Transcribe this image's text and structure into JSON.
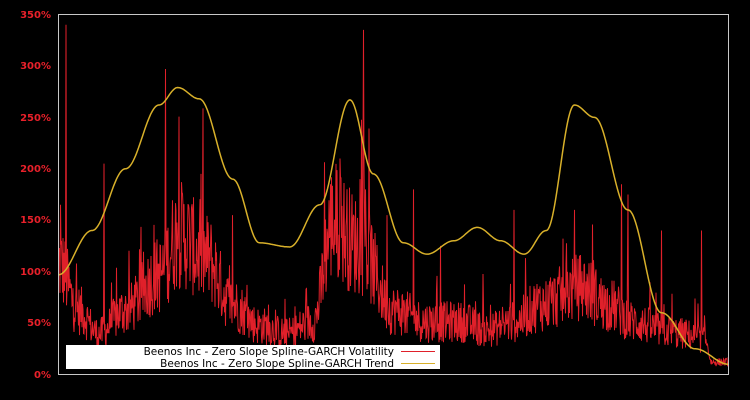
{
  "chart_data": {
    "type": "line",
    "title": "",
    "xlabel": "",
    "ylabel": "",
    "ylim": [
      0,
      350
    ],
    "y_ticks": [
      "0%",
      "50%",
      "100%",
      "150%",
      "200%",
      "250%",
      "300%",
      "350%"
    ],
    "y_tick_values": [
      0,
      50,
      100,
      150,
      200,
      250,
      300,
      350
    ],
    "grid": false,
    "legend_position": "lower-left",
    "x_range": [
      0,
      1
    ],
    "series": [
      {
        "name": "Beenos Inc - Zero Slope Spline-GARCH Volatility",
        "color": "#e0202a",
        "baseline_x": [
          0.0,
          0.03,
          0.06,
          0.1,
          0.15,
          0.18,
          0.22,
          0.26,
          0.3,
          0.34,
          0.38,
          0.41,
          0.45,
          0.5,
          0.55,
          0.6,
          0.64,
          0.68,
          0.72,
          0.78,
          0.82,
          0.86,
          0.9,
          0.93,
          0.965,
          0.975,
          1.0
        ],
        "baseline_y": [
          95,
          55,
          35,
          55,
          85,
          120,
          100,
          60,
          42,
          35,
          45,
          130,
          110,
          55,
          45,
          45,
          38,
          45,
          60,
          75,
          60,
          45,
          38,
          35,
          30,
          8,
          8
        ],
        "spikes_x": [
          0.003,
          0.011,
          0.068,
          0.16,
          0.213,
          0.26,
          0.42,
          0.45,
          0.455,
          0.458,
          0.49,
          0.53,
          0.57,
          0.68,
          0.77,
          0.84,
          0.85,
          0.9,
          0.96
        ],
        "spikes_y": [
          165,
          340,
          205,
          297,
          195,
          155,
          210,
          190,
          335,
          180,
          155,
          180,
          125,
          160,
          160,
          185,
          175,
          140,
          140
        ]
      },
      {
        "name": "Beenos Inc - Zero Slope Spline-GARCH Trend",
        "color": "#d8b02a",
        "x": [
          0.0,
          0.05,
          0.1,
          0.15,
          0.178,
          0.21,
          0.26,
          0.3,
          0.345,
          0.39,
          0.435,
          0.47,
          0.515,
          0.55,
          0.59,
          0.625,
          0.66,
          0.695,
          0.728,
          0.77,
          0.8,
          0.85,
          0.9,
          0.95,
          1.0
        ],
        "values": [
          97,
          140,
          200,
          262,
          279,
          268,
          190,
          128,
          124,
          165,
          267,
          195,
          128,
          117,
          130,
          143,
          130,
          117,
          140,
          262,
          250,
          160,
          60,
          25,
          10
        ]
      }
    ]
  },
  "legend": {
    "items": [
      {
        "label": "Beenos Inc - Zero Slope Spline-GARCH Volatility",
        "color": "#e0202a"
      },
      {
        "label": "Beenos Inc - Zero Slope Spline-GARCH Trend",
        "color": "#d8b02a"
      }
    ]
  },
  "colors": {
    "background": "#000000",
    "axis_frame": "#c8c8c8",
    "tick_label": "#e8202a",
    "legend_background": "#ffffff"
  }
}
